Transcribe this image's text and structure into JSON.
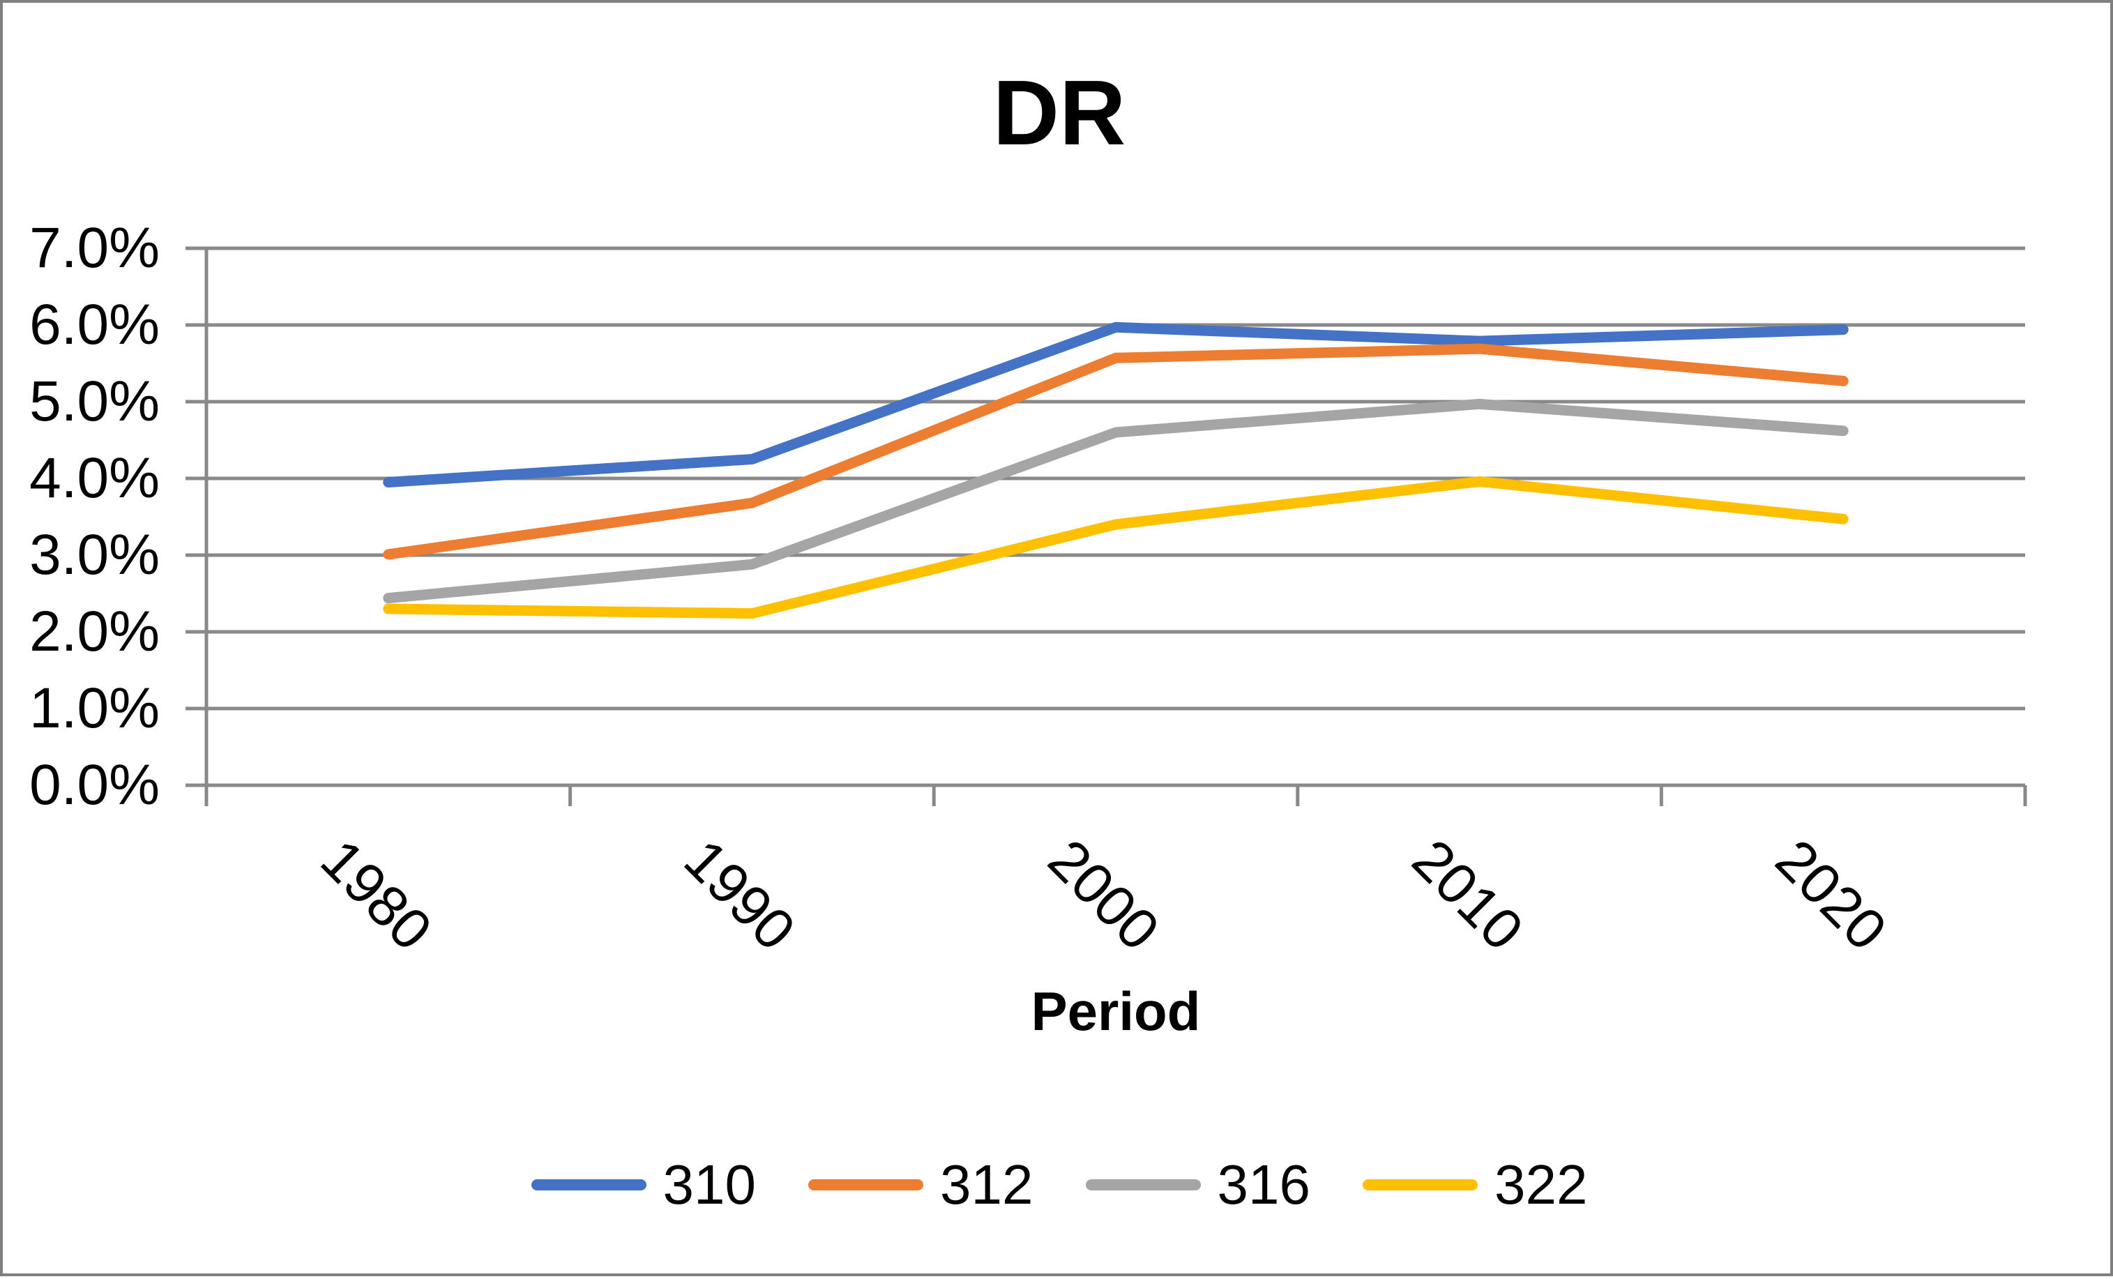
{
  "title": "DR",
  "x_axis": {
    "label": "Period",
    "tick_labels": [
      "1980",
      "1990",
      "2000",
      "2010",
      "2020"
    ]
  },
  "y_axis": {
    "tick_labels": [
      "7.0%",
      "6.0%",
      "5.0%",
      "4.0%",
      "3.0%",
      "2.0%",
      "1.0%",
      "0.0%"
    ]
  },
  "colors": {
    "grid": "#898989",
    "axis": "#898989",
    "frame_border": "#7f7f7f",
    "text": "#000000"
  },
  "chart_data": {
    "type": "line",
    "title": "DR",
    "xlabel": "Period",
    "ylabel": "",
    "categories": [
      "1980",
      "1990",
      "2000",
      "2010",
      "2020"
    ],
    "series": [
      {
        "name": "310",
        "color": "#4472C4",
        "values": [
          3.95,
          4.25,
          5.97,
          5.79,
          5.94
        ]
      },
      {
        "name": "312",
        "color": "#ED7D31",
        "values": [
          3.01,
          3.68,
          5.57,
          5.69,
          5.27
        ]
      },
      {
        "name": "316",
        "color": "#A5A5A5",
        "values": [
          2.44,
          2.88,
          4.6,
          4.97,
          4.62
        ]
      },
      {
        "name": "322",
        "color": "#FFC000",
        "values": [
          2.3,
          2.24,
          3.4,
          3.96,
          3.47
        ]
      }
    ],
    "values_unit": "percent",
    "ylim": [
      0.0,
      7.0
    ],
    "y_tick_step": 1.0,
    "y_tick_format": "0.0%",
    "grid": true,
    "legend_position": "bottom"
  }
}
